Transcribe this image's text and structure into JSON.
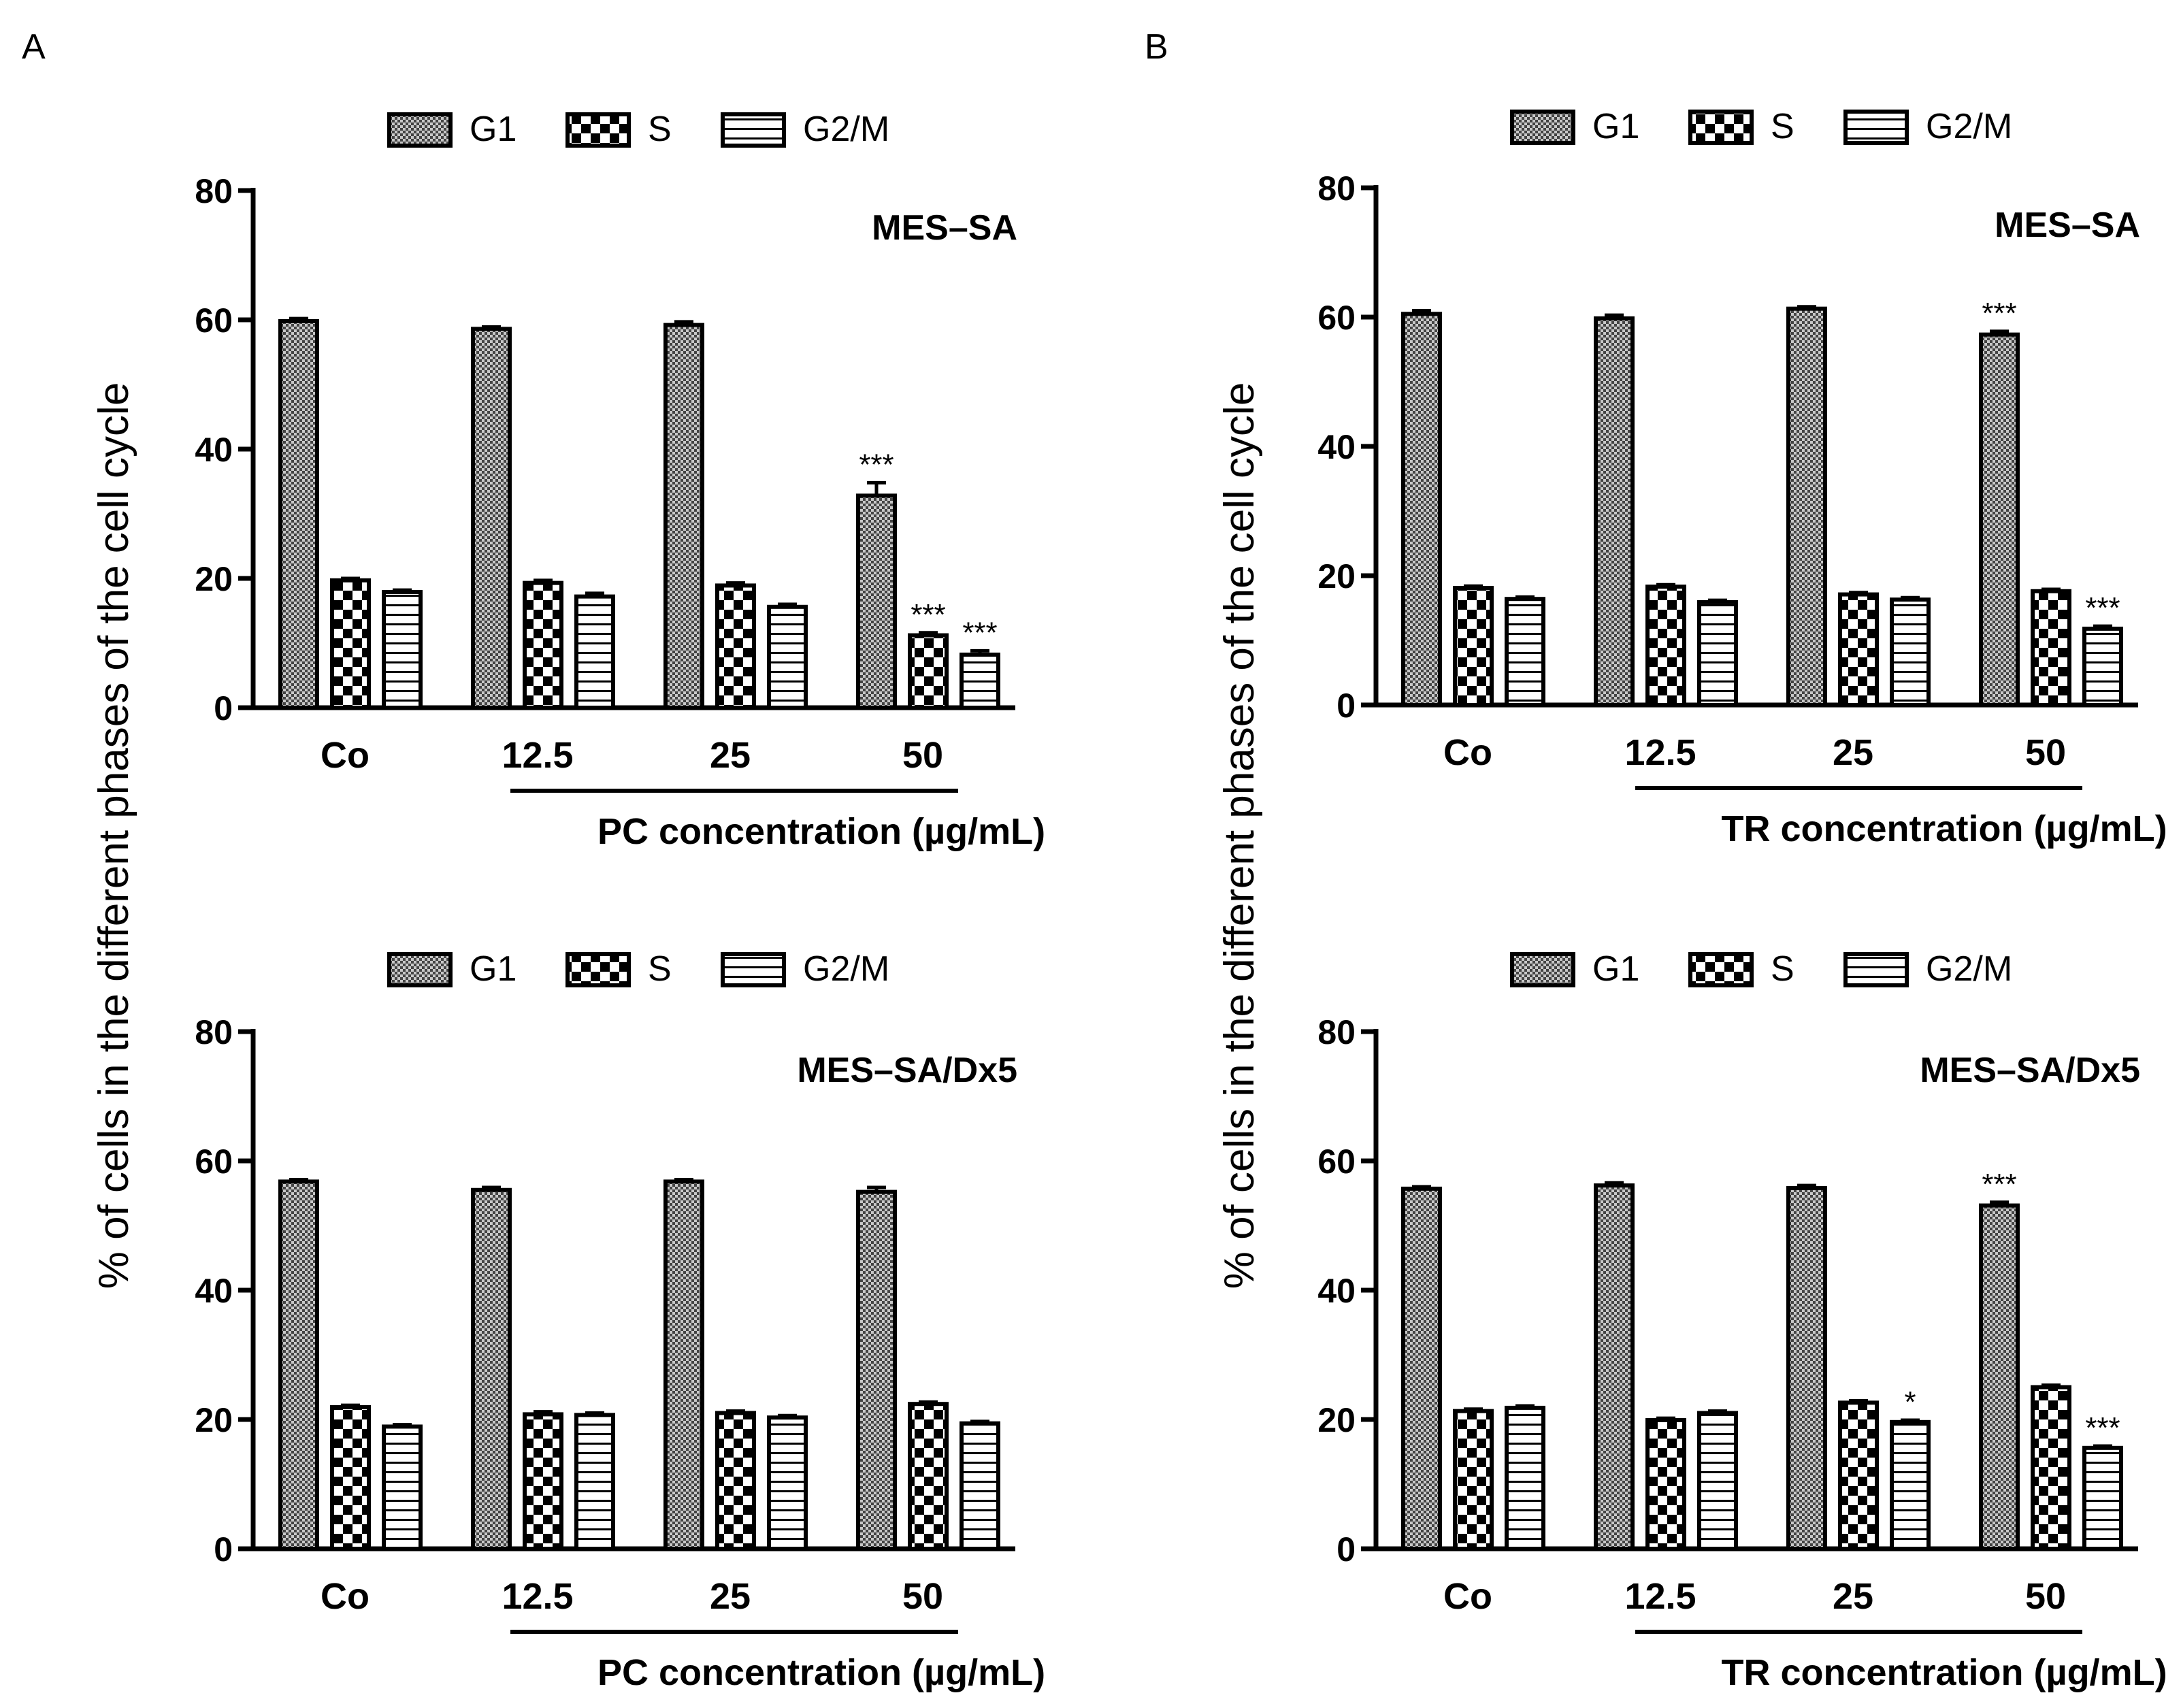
{
  "panel_labels": [
    "A",
    "B"
  ],
  "ylabel": "% of cells in the different phases of the cell cycle",
  "legend": [
    "G1",
    "S",
    "G2/M"
  ],
  "chart_data": [
    {
      "type": "bar",
      "panel": "A",
      "cell_line": "MES–SA",
      "xlabel": "PC concentration (µg/mL)",
      "categories": [
        "Co",
        "12.5",
        "25",
        "50"
      ],
      "ylim": [
        0,
        80
      ],
      "yticks": [
        "0",
        "20",
        "40",
        "60",
        "80"
      ],
      "series": [
        {
          "name": "G1",
          "values": [
            59.8,
            58.6,
            59.2,
            32.8
          ],
          "errors": [
            0.4,
            0.3,
            0.5,
            2.0
          ],
          "annotations": [
            "",
            "",
            "",
            "***"
          ]
        },
        {
          "name": "S",
          "values": [
            19.7,
            19.3,
            18.9,
            11.2
          ],
          "errors": [
            0.3,
            0.4,
            0.4,
            0.4
          ],
          "annotations": [
            "",
            "",
            "",
            "***"
          ]
        },
        {
          "name": "G2/M",
          "values": [
            17.9,
            17.2,
            15.6,
            8.2
          ],
          "errors": [
            0.3,
            0.5,
            0.4,
            0.6
          ],
          "annotations": [
            "",
            "",
            "",
            "***"
          ]
        }
      ]
    },
    {
      "type": "bar",
      "panel": "B",
      "cell_line": "MES–SA",
      "xlabel": "TR concentration (µg/mL)",
      "categories": [
        "Co",
        "12.5",
        "25",
        "50"
      ],
      "ylim": [
        0,
        80
      ],
      "yticks": [
        "0",
        "20",
        "40",
        "60",
        "80"
      ],
      "series": [
        {
          "name": "G1",
          "values": [
            60.5,
            59.8,
            61.3,
            57.3
          ],
          "errors": [
            0.5,
            0.5,
            0.3,
            0.5
          ],
          "annotations": [
            "",
            "",
            "",
            "***"
          ]
        },
        {
          "name": "S",
          "values": [
            18.1,
            18.3,
            17.1,
            17.6
          ],
          "errors": [
            0.3,
            0.3,
            0.3,
            0.3
          ],
          "annotations": [
            "",
            "",
            "",
            ""
          ]
        },
        {
          "name": "G2/M",
          "values": [
            16.4,
            15.9,
            16.3,
            11.8
          ],
          "errors": [
            0.3,
            0.3,
            0.3,
            0.4
          ],
          "annotations": [
            "",
            "",
            "",
            "***"
          ]
        }
      ]
    },
    {
      "type": "bar",
      "panel": "A",
      "cell_line": "MES–SA/Dx5",
      "xlabel": "PC concentration (µg/mL)",
      "categories": [
        "Co",
        "12.5",
        "25",
        "50"
      ],
      "ylim": [
        0,
        80
      ],
      "yticks": [
        "0",
        "20",
        "40",
        "60",
        "80"
      ],
      "series": [
        {
          "name": "G1",
          "values": [
            56.8,
            55.5,
            56.8,
            55.2
          ],
          "errors": [
            0.3,
            0.4,
            0.3,
            0.7
          ],
          "annotations": [
            "",
            "",
            "",
            ""
          ]
        },
        {
          "name": "S",
          "values": [
            21.9,
            20.8,
            21.0,
            22.4
          ],
          "errors": [
            0.3,
            0.4,
            0.3,
            0.3
          ],
          "annotations": [
            "",
            "",
            "",
            ""
          ]
        },
        {
          "name": "G2/M",
          "values": [
            18.9,
            20.7,
            20.3,
            19.4
          ],
          "errors": [
            0.3,
            0.3,
            0.3,
            0.3
          ],
          "annotations": [
            "",
            "",
            "",
            ""
          ]
        }
      ]
    },
    {
      "type": "bar",
      "panel": "B",
      "cell_line": "MES–SA/Dx5",
      "xlabel": "TR concentration (µg/mL)",
      "categories": [
        "Co",
        "12.5",
        "25",
        "50"
      ],
      "ylim": [
        0,
        80
      ],
      "yticks": [
        "0",
        "20",
        "40",
        "60",
        "80"
      ],
      "series": [
        {
          "name": "G1",
          "values": [
            55.7,
            56.2,
            55.8,
            53.1
          ],
          "errors": [
            0.3,
            0.4,
            0.4,
            0.5
          ],
          "annotations": [
            "",
            "",
            "",
            "***"
          ]
        },
        {
          "name": "S",
          "values": [
            21.3,
            19.9,
            22.6,
            25.0
          ],
          "errors": [
            0.3,
            0.3,
            0.3,
            0.3
          ],
          "annotations": [
            "",
            "",
            "",
            ""
          ]
        },
        {
          "name": "G2/M",
          "values": [
            21.8,
            21.0,
            19.6,
            15.6
          ],
          "errors": [
            0.3,
            0.3,
            0.3,
            0.3
          ],
          "annotations": [
            "",
            "",
            "*",
            "***"
          ]
        }
      ]
    }
  ]
}
